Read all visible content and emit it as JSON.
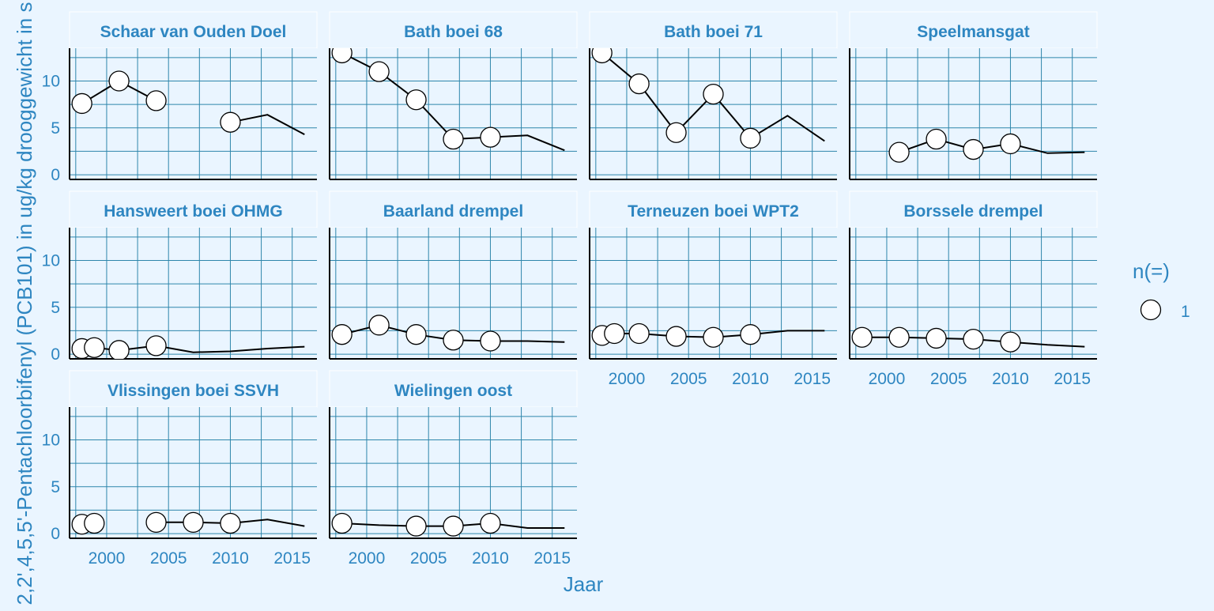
{
  "chart_data": {
    "type": "line",
    "y_label": "2,2',4,5,5'-Pentachloorbifenyl (PCB101) in ug/kg drooggewicht in s",
    "x_label": "Jaar",
    "xlim": [
      1997,
      2017
    ],
    "ylim": [
      -0.5,
      13.5
    ],
    "x_ticks": [
      2000,
      2005,
      2010,
      2015
    ],
    "y_ticks": [
      0,
      5,
      10
    ],
    "legend": {
      "title": "n(=)",
      "items": [
        "1"
      ],
      "position": "right"
    },
    "colors": {
      "background": "#EAF5FF",
      "panel": "#EAF5FF",
      "grid": "#2E86AB",
      "text": "#2E86C1",
      "strip_text": "#2E86C1",
      "line": "#000000",
      "point_fill": "#FFFFFF"
    },
    "panels": [
      {
        "title": "Schaar van Ouden Doel",
        "line": [
          [
            1998,
            7.6
          ],
          [
            2001,
            10.0
          ],
          [
            2004,
            7.9
          ],
          [
            null,
            null
          ],
          [
            2010,
            5.6
          ],
          [
            2013,
            6.4
          ],
          [
            2016,
            4.3
          ]
        ],
        "points": [
          [
            1998,
            7.6
          ],
          [
            2001,
            10.0
          ],
          [
            2004,
            7.9
          ],
          [
            2010,
            5.6
          ]
        ]
      },
      {
        "title": "Bath boei 68",
        "line": [
          [
            1998,
            13.0
          ],
          [
            2001,
            11.0
          ],
          [
            2004,
            8.0
          ],
          [
            2007,
            3.8
          ],
          [
            2010,
            4.0
          ],
          [
            2013,
            4.2
          ],
          [
            2016,
            2.6
          ]
        ],
        "points": [
          [
            1998,
            13.0
          ],
          [
            2001,
            11.0
          ],
          [
            2004,
            8.0
          ],
          [
            2007,
            3.8
          ],
          [
            2010,
            4.0
          ]
        ]
      },
      {
        "title": "Bath boei 71",
        "line": [
          [
            1998,
            13.0
          ],
          [
            2001,
            9.7
          ],
          [
            2004,
            4.5
          ],
          [
            2007,
            8.6
          ],
          [
            2010,
            3.9
          ],
          [
            2013,
            6.3
          ],
          [
            2016,
            3.6
          ]
        ],
        "points": [
          [
            1998,
            13.0
          ],
          [
            2001,
            9.7
          ],
          [
            2004,
            4.5
          ],
          [
            2007,
            8.6
          ],
          [
            2010,
            3.9
          ]
        ]
      },
      {
        "title": "Speelmansgat",
        "line": [
          [
            2001,
            2.4
          ],
          [
            2004,
            3.8
          ],
          [
            2007,
            2.7
          ],
          [
            2010,
            3.3
          ],
          [
            2013,
            2.3
          ],
          [
            2016,
            2.4
          ]
        ],
        "points": [
          [
            2001,
            2.4
          ],
          [
            2004,
            3.8
          ],
          [
            2007,
            2.7
          ],
          [
            2010,
            3.3
          ]
        ]
      },
      {
        "title": "Hansweert boei OHMG",
        "line": [
          [
            1998,
            0.6
          ],
          [
            1999,
            0.7
          ],
          [
            2001,
            0.4
          ],
          [
            2004,
            0.9
          ],
          [
            2007,
            0.2
          ],
          [
            2010,
            0.3
          ],
          [
            2013,
            0.6
          ],
          [
            2016,
            0.8
          ]
        ],
        "points": [
          [
            1998,
            0.6
          ],
          [
            1999,
            0.7
          ],
          [
            2001,
            0.4
          ],
          [
            2004,
            0.9
          ]
        ]
      },
      {
        "title": "Baarland drempel",
        "line": [
          [
            1998,
            2.1
          ],
          [
            2001,
            3.1
          ],
          [
            2004,
            2.1
          ],
          [
            2007,
            1.5
          ],
          [
            2010,
            1.4
          ],
          [
            2013,
            1.4
          ],
          [
            2016,
            1.3
          ]
        ],
        "points": [
          [
            1998,
            2.1
          ],
          [
            2001,
            3.1
          ],
          [
            2004,
            2.1
          ],
          [
            2007,
            1.5
          ],
          [
            2010,
            1.4
          ]
        ]
      },
      {
        "title": "Terneuzen boei WPT2",
        "line": [
          [
            1998,
            2.0
          ],
          [
            1999,
            2.2
          ],
          [
            2001,
            2.2
          ],
          [
            2004,
            1.9
          ],
          [
            2007,
            1.8
          ],
          [
            2010,
            2.1
          ],
          [
            2013,
            2.5
          ],
          [
            2016,
            2.5
          ]
        ],
        "points": [
          [
            1998,
            2.0
          ],
          [
            1999,
            2.2
          ],
          [
            2001,
            2.2
          ],
          [
            2004,
            1.9
          ],
          [
            2007,
            1.8
          ],
          [
            2010,
            2.1
          ]
        ]
      },
      {
        "title": "Borssele drempel",
        "line": [
          [
            1998,
            1.8
          ],
          [
            2001,
            1.8
          ],
          [
            2004,
            1.7
          ],
          [
            2007,
            1.6
          ],
          [
            2010,
            1.3
          ],
          [
            2013,
            1.0
          ],
          [
            2016,
            0.8
          ]
        ],
        "points": [
          [
            1998,
            1.8
          ],
          [
            2001,
            1.8
          ],
          [
            2004,
            1.7
          ],
          [
            2007,
            1.6
          ],
          [
            2010,
            1.3
          ]
        ]
      },
      {
        "title": "Vlissingen boei SSVH",
        "line": [
          [
            1998,
            1.0
          ],
          [
            1999,
            1.1
          ],
          [
            null,
            null
          ],
          [
            2004,
            1.2
          ],
          [
            2007,
            1.2
          ],
          [
            2010,
            1.1
          ],
          [
            2013,
            1.5
          ],
          [
            2016,
            0.8
          ]
        ],
        "points": [
          [
            1998,
            1.0
          ],
          [
            1999,
            1.1
          ],
          [
            2004,
            1.2
          ],
          [
            2007,
            1.2
          ],
          [
            2010,
            1.1
          ]
        ]
      },
      {
        "title": "Wielingen oost",
        "line": [
          [
            1998,
            1.1
          ],
          [
            2001,
            0.9
          ],
          [
            2004,
            0.8
          ],
          [
            2007,
            0.8
          ],
          [
            2010,
            1.1
          ],
          [
            2013,
            0.6
          ],
          [
            2016,
            0.6
          ]
        ],
        "points": [
          [
            1998,
            1.1
          ],
          [
            2004,
            0.8
          ],
          [
            2007,
            0.8
          ],
          [
            2010,
            1.1
          ]
        ]
      }
    ]
  }
}
